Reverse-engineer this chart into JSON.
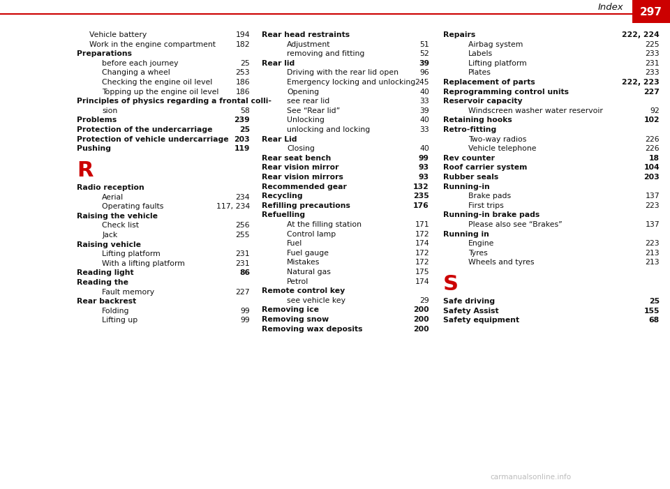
{
  "page_number": "297",
  "header_text": "Index",
  "bg_color": "#ffffff",
  "header_bg": "#cc0000",
  "header_text_color": "#ffffff",
  "header_label_color": "#000000",
  "line_color": "#cc0000",
  "watermark": "carmanualsonline.info",
  "col1_entries": [
    {
      "text": "Vehicle battery",
      "dots": true,
      "page": "194",
      "indent": 1
    },
    {
      "text": "Work in the engine compartment",
      "dots": true,
      "page": "182",
      "indent": 1
    },
    {
      "text": "Preparations",
      "dots": false,
      "page": "",
      "indent": 0,
      "bold": true
    },
    {
      "text": "before each journey",
      "dots": true,
      "page": "25",
      "indent": 2
    },
    {
      "text": "Changing a wheel",
      "dots": true,
      "page": "253",
      "indent": 2
    },
    {
      "text": "Checking the engine oil level",
      "dots": true,
      "page": "186",
      "indent": 2
    },
    {
      "text": "Topping up the engine oil level",
      "dots": true,
      "page": "186",
      "indent": 2
    },
    {
      "text": "Principles of physics regarding a frontal colli-",
      "dots": false,
      "page": "",
      "indent": 0,
      "bold": true
    },
    {
      "text": "sion",
      "dots": true,
      "page": "58",
      "indent": 2
    },
    {
      "text": "Problems",
      "dots": true,
      "page": "239",
      "indent": 0,
      "bold": true
    },
    {
      "text": "Protection of the undercarriage",
      "dots": true,
      "page": "25",
      "indent": 0,
      "bold": true
    },
    {
      "text": "Protection of vehicle undercarriage",
      "dots": true,
      "page": "203",
      "indent": 0,
      "bold": true
    },
    {
      "text": "Pushing",
      "dots": true,
      "page": "119",
      "indent": 0,
      "bold": true
    },
    {
      "text": "R",
      "dots": false,
      "page": "",
      "indent": 0,
      "section": true
    },
    {
      "text": "Radio reception",
      "dots": false,
      "page": "",
      "indent": 0,
      "bold": true
    },
    {
      "text": "Aerial",
      "dots": true,
      "page": "234",
      "indent": 2
    },
    {
      "text": "Operating faults",
      "dots": true,
      "page": "117, 234",
      "indent": 2
    },
    {
      "text": "Raising the vehicle",
      "dots": false,
      "page": "",
      "indent": 0,
      "bold": true
    },
    {
      "text": "Check list",
      "dots": true,
      "page": "256",
      "indent": 2
    },
    {
      "text": "Jack",
      "dots": true,
      "page": "255",
      "indent": 2
    },
    {
      "text": "Raising vehicle",
      "dots": false,
      "page": "",
      "indent": 0,
      "bold": true
    },
    {
      "text": "Lifting platform",
      "dots": true,
      "page": "231",
      "indent": 2
    },
    {
      "text": "With a lifting platform",
      "dots": true,
      "page": "231",
      "indent": 2
    },
    {
      "text": "Reading light",
      "dots": true,
      "page": "86",
      "indent": 0,
      "bold": true
    },
    {
      "text": "Reading the",
      "dots": false,
      "page": "",
      "indent": 0,
      "bold": true
    },
    {
      "text": "Fault memory",
      "dots": true,
      "page": "227",
      "indent": 2
    },
    {
      "text": "Rear backrest",
      "dots": false,
      "page": "",
      "indent": 0,
      "bold": true
    },
    {
      "text": "Folding",
      "dots": true,
      "page": "99",
      "indent": 2
    },
    {
      "text": "Lifting up",
      "dots": true,
      "page": "99",
      "indent": 2
    }
  ],
  "col2_entries": [
    {
      "text": "Rear head restraints",
      "dots": false,
      "page": "",
      "indent": 0,
      "bold": true
    },
    {
      "text": "Adjustment",
      "dots": true,
      "page": "51",
      "indent": 2
    },
    {
      "text": "removing and fitting",
      "dots": true,
      "page": "52",
      "indent": 2
    },
    {
      "text": "Rear lid",
      "dots": true,
      "page": "39",
      "indent": 0,
      "bold": true
    },
    {
      "text": "Driving with the rear lid open",
      "dots": true,
      "page": "96",
      "indent": 2
    },
    {
      "text": "Emergency locking and unlocking",
      "dots": true,
      "page": "245",
      "indent": 2
    },
    {
      "text": "Opening",
      "dots": true,
      "page": "40",
      "indent": 2
    },
    {
      "text": "see rear lid",
      "dots": true,
      "page": "33",
      "indent": 2
    },
    {
      "text": "See “Rear lid”",
      "dots": true,
      "page": "39",
      "indent": 2
    },
    {
      "text": "Unlocking",
      "dots": true,
      "page": "40",
      "indent": 2
    },
    {
      "text": "unlocking and locking",
      "dots": true,
      "page": "33",
      "indent": 2
    },
    {
      "text": "Rear Lid",
      "dots": false,
      "page": "",
      "indent": 0,
      "bold": true
    },
    {
      "text": "Closing",
      "dots": true,
      "page": "40",
      "indent": 2
    },
    {
      "text": "Rear seat bench",
      "dots": true,
      "page": "99",
      "indent": 0,
      "bold": true
    },
    {
      "text": "Rear vision mirror",
      "dots": true,
      "page": "93",
      "indent": 0,
      "bold": true
    },
    {
      "text": "Rear vision mirrors",
      "dots": true,
      "page": "93",
      "indent": 0,
      "bold": true
    },
    {
      "text": "Recommended gear",
      "dots": true,
      "page": "132",
      "indent": 0,
      "bold": true
    },
    {
      "text": "Recycling",
      "dots": true,
      "page": "235",
      "indent": 0,
      "bold": true
    },
    {
      "text": "Refilling precautions",
      "dots": true,
      "page": "176",
      "indent": 0,
      "bold": true
    },
    {
      "text": "Refuelling",
      "dots": false,
      "page": "",
      "indent": 0,
      "bold": true
    },
    {
      "text": "At the filling station",
      "dots": true,
      "page": "171",
      "indent": 2
    },
    {
      "text": "Control lamp",
      "dots": true,
      "page": "172",
      "indent": 2
    },
    {
      "text": "Fuel",
      "dots": true,
      "page": "174",
      "indent": 2
    },
    {
      "text": "Fuel gauge",
      "dots": true,
      "page": "172",
      "indent": 2
    },
    {
      "text": "Mistakes",
      "dots": true,
      "page": "172",
      "indent": 2
    },
    {
      "text": "Natural gas",
      "dots": true,
      "page": "175",
      "indent": 2
    },
    {
      "text": "Petrol",
      "dots": true,
      "page": "174",
      "indent": 2
    },
    {
      "text": "Remote control key",
      "dots": false,
      "page": "",
      "indent": 0,
      "bold": true
    },
    {
      "text": "see vehicle key",
      "dots": true,
      "page": "29",
      "indent": 2
    },
    {
      "text": "Removing ice",
      "dots": true,
      "page": "200",
      "indent": 0,
      "bold": true
    },
    {
      "text": "Removing snow",
      "dots": true,
      "page": "200",
      "indent": 0,
      "bold": true
    },
    {
      "text": "Removing wax deposits",
      "dots": true,
      "page": "200",
      "indent": 0,
      "bold": true
    }
  ],
  "col3_entries": [
    {
      "text": "Repairs",
      "dots": true,
      "page": "222, 224",
      "indent": 0,
      "bold": true
    },
    {
      "text": "Airbag system",
      "dots": true,
      "page": "225",
      "indent": 2
    },
    {
      "text": "Labels",
      "dots": true,
      "page": "233",
      "indent": 2
    },
    {
      "text": "Lifting platform",
      "dots": true,
      "page": "231",
      "indent": 2
    },
    {
      "text": "Plates",
      "dots": true,
      "page": "233",
      "indent": 2
    },
    {
      "text": "Replacement of parts",
      "dots": true,
      "page": "222, 223",
      "indent": 0,
      "bold": true
    },
    {
      "text": "Reprogramming control units",
      "dots": true,
      "page": "227",
      "indent": 0,
      "bold": true
    },
    {
      "text": "Reservoir capacity",
      "dots": false,
      "page": "",
      "indent": 0,
      "bold": true
    },
    {
      "text": "Windscreen washer water reservoir",
      "dots": true,
      "page": "92",
      "indent": 2
    },
    {
      "text": "Retaining hooks",
      "dots": true,
      "page": "102",
      "indent": 0,
      "bold": true
    },
    {
      "text": "Retro-fitting",
      "dots": false,
      "page": "",
      "indent": 0,
      "bold": true
    },
    {
      "text": "Two-way radios",
      "dots": true,
      "page": "226",
      "indent": 2
    },
    {
      "text": "Vehicle telephone",
      "dots": true,
      "page": "226",
      "indent": 2
    },
    {
      "text": "Rev counter",
      "dots": true,
      "page": "18",
      "indent": 0,
      "bold": true
    },
    {
      "text": "Roof carrier system",
      "dots": true,
      "page": "104",
      "indent": 0,
      "bold": true
    },
    {
      "text": "Rubber seals",
      "dots": true,
      "page": "203",
      "indent": 0,
      "bold": true
    },
    {
      "text": "Running-in",
      "dots": false,
      "page": "",
      "indent": 0,
      "bold": true
    },
    {
      "text": "Brake pads",
      "dots": true,
      "page": "137",
      "indent": 2
    },
    {
      "text": "First trips",
      "dots": true,
      "page": "223",
      "indent": 2
    },
    {
      "text": "Running-in brake pads",
      "dots": false,
      "page": "",
      "indent": 0,
      "bold": true
    },
    {
      "text": "Please also see “Brakes”",
      "dots": true,
      "page": "137",
      "indent": 2
    },
    {
      "text": "Running in",
      "dots": false,
      "page": "",
      "indent": 0,
      "bold": true
    },
    {
      "text": "Engine",
      "dots": true,
      "page": "223",
      "indent": 2
    },
    {
      "text": "Tyres",
      "dots": true,
      "page": "213",
      "indent": 2
    },
    {
      "text": "Wheels and tyres",
      "dots": true,
      "page": "213",
      "indent": 2
    },
    {
      "text": "S",
      "dots": false,
      "page": "",
      "indent": 0,
      "section": true
    },
    {
      "text": "Safe driving",
      "dots": true,
      "page": "25",
      "indent": 0,
      "bold": true
    },
    {
      "text": "Safety Assist",
      "dots": true,
      "page": "155",
      "indent": 0,
      "bold": true
    },
    {
      "text": "Safety equipment",
      "dots": true,
      "page": "68",
      "indent": 0,
      "bold": true
    }
  ]
}
